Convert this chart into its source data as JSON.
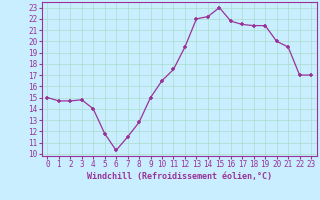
{
  "x": [
    0,
    1,
    2,
    3,
    4,
    5,
    6,
    7,
    8,
    9,
    10,
    11,
    12,
    13,
    14,
    15,
    16,
    17,
    18,
    19,
    20,
    21,
    22,
    23
  ],
  "y": [
    15.0,
    14.7,
    14.7,
    14.8,
    14.0,
    11.8,
    10.3,
    11.5,
    12.8,
    15.0,
    16.5,
    17.5,
    19.5,
    22.0,
    22.2,
    23.0,
    21.8,
    21.5,
    21.4,
    21.4,
    20.0,
    19.5,
    17.0,
    17.0
  ],
  "line_color": "#993399",
  "marker": "+",
  "bg_color": "#c8eeff",
  "grid_color": "#aaddcc",
  "xlabel": "Windchill (Refroidissement éolien,°C)",
  "xlabel_color": "#993399",
  "tick_color": "#993399",
  "ylabel_ticks": [
    10,
    11,
    12,
    13,
    14,
    15,
    16,
    17,
    18,
    19,
    20,
    21,
    22,
    23
  ],
  "xlabel_ticks": [
    0,
    1,
    2,
    3,
    4,
    5,
    6,
    7,
    8,
    9,
    10,
    11,
    12,
    13,
    14,
    15,
    16,
    17,
    18,
    19,
    20,
    21,
    22,
    23
  ],
  "ylim": [
    9.8,
    23.5
  ],
  "xlim": [
    -0.5,
    23.5
  ],
  "label_fontsize": 6.0,
  "tick_fontsize": 5.5
}
